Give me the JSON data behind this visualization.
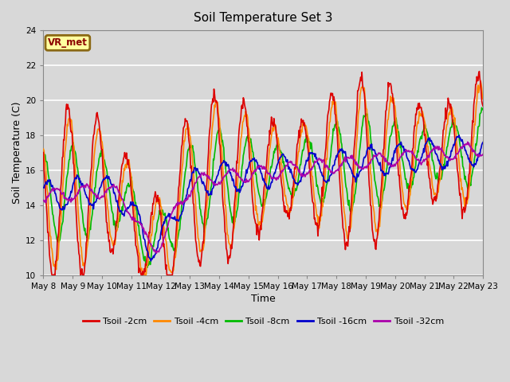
{
  "title": "Soil Temperature Set 3",
  "xlabel": "Time",
  "ylabel": "Soil Temperature (C)",
  "ylim": [
    10,
    24
  ],
  "yticks": [
    10,
    12,
    14,
    16,
    18,
    20,
    22,
    24
  ],
  "annotation_text": "VR_met",
  "annotation_bbox": {
    "boxstyle": "round,pad=0.25",
    "facecolor": "#FFFFA0",
    "edgecolor": "#8B6914",
    "linewidth": 2
  },
  "annotation_color": "#8B0000",
  "line_colors": {
    "Tsoil -2cm": "#DD0000",
    "Tsoil -4cm": "#FF8800",
    "Tsoil -8cm": "#00BB00",
    "Tsoil -16cm": "#0000CC",
    "Tsoil -32cm": "#AA00AA"
  },
  "line_width": 1.2,
  "fig_facecolor": "#D8D8D8",
  "axes_facecolor": "#D8D8D8",
  "grid_color": "#FFFFFF",
  "n_days": 15,
  "start_day": 8
}
